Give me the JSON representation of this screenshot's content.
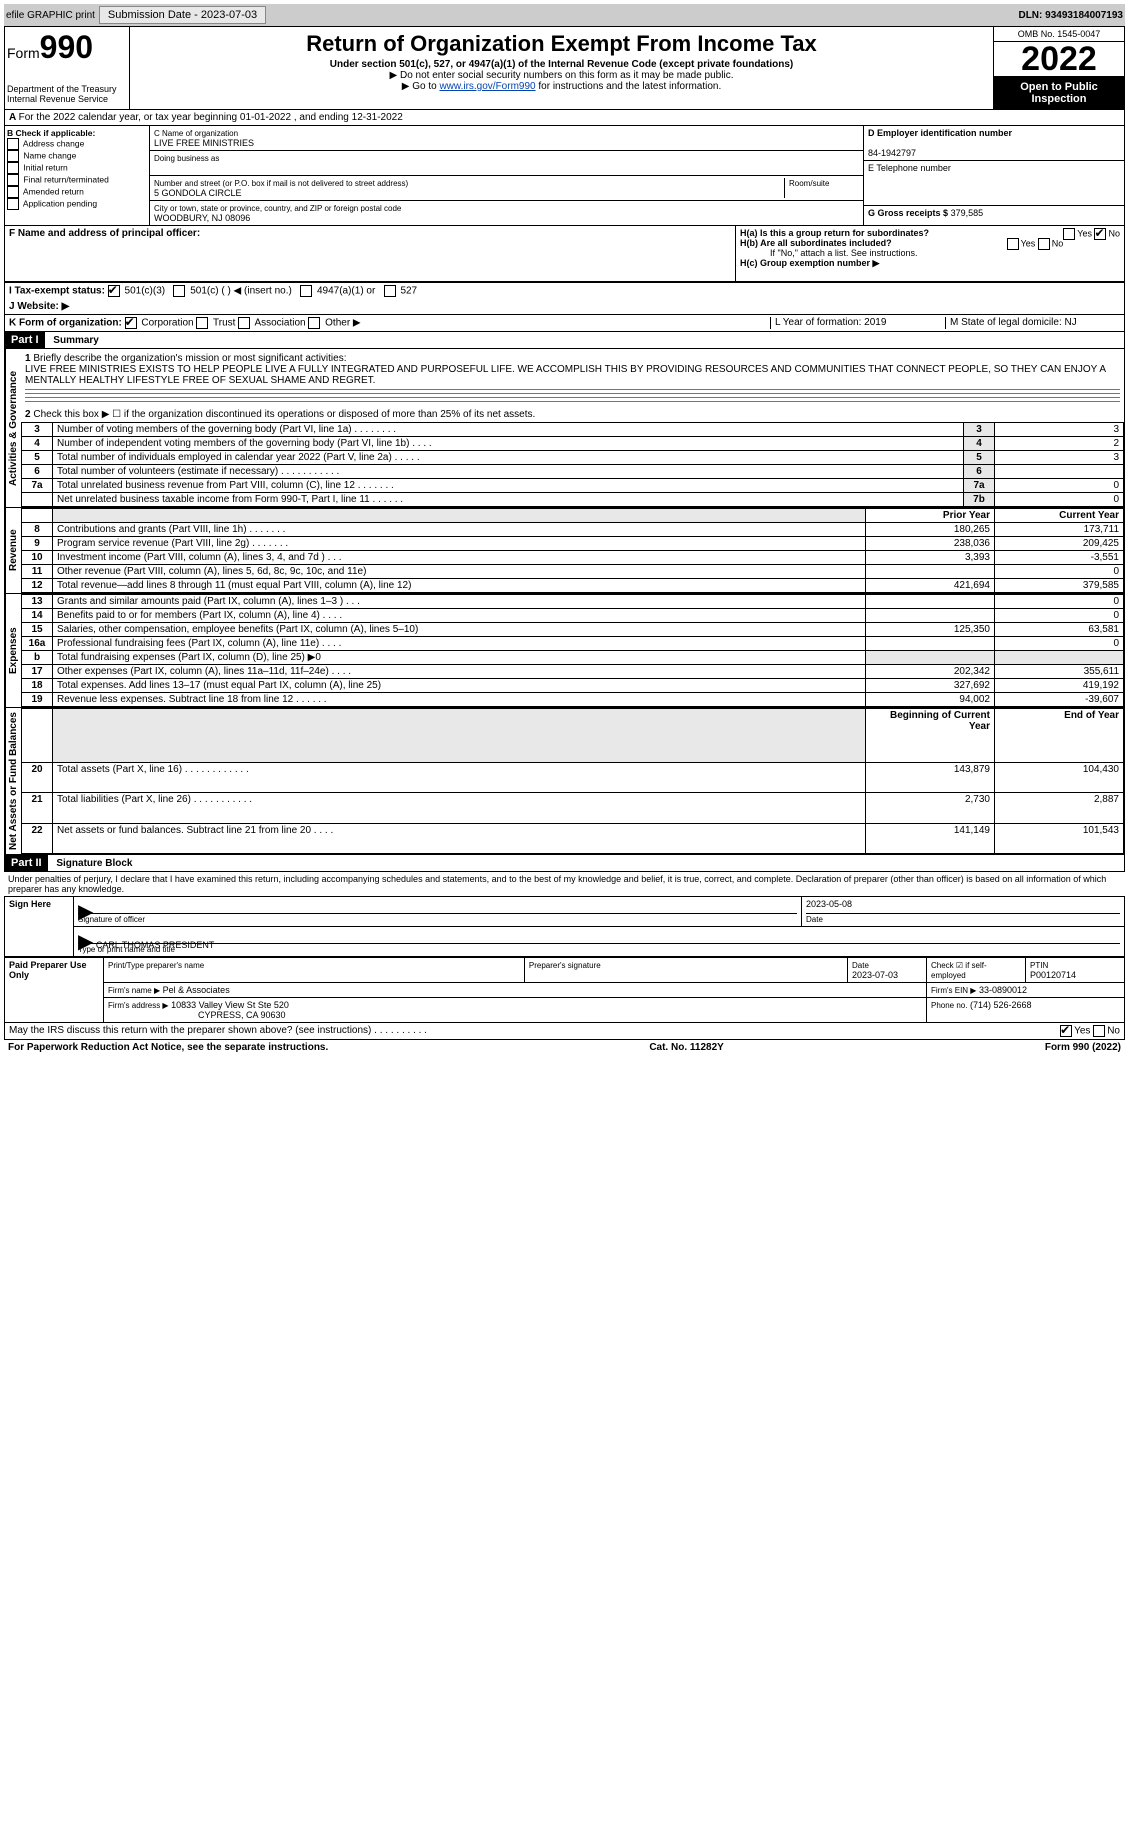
{
  "topbar": {
    "efile": "efile GRAPHIC print",
    "submission_label": "Submission Date - 2023-07-03",
    "dln": "DLN: 93493184007193"
  },
  "header": {
    "form_prefix": "Form",
    "form_no": "990",
    "dept1": "Department of the Treasury",
    "dept2": "Internal Revenue Service",
    "title": "Return of Organization Exempt From Income Tax",
    "subtitle": "Under section 501(c), 527, or 4947(a)(1) of the Internal Revenue Code (except private foundations)",
    "note1": "▶ Do not enter social security numbers on this form as it may be made public.",
    "note2_pre": "▶ Go to ",
    "note2_link": "www.irs.gov/Form990",
    "note2_post": " for instructions and the latest information.",
    "omb": "OMB No. 1545-0047",
    "year": "2022",
    "open": "Open to Public Inspection"
  },
  "periodA": "For the 2022 calendar year, or tax year beginning 01-01-2022     , and ending 12-31-2022",
  "boxB": {
    "label": "B Check if applicable:",
    "items": [
      "Address change",
      "Name change",
      "Initial return",
      "Final return/terminated",
      "Amended return",
      "Application pending"
    ]
  },
  "boxC": {
    "name_label": "C Name of organization",
    "name": "LIVE FREE MINISTRIES",
    "dba_label": "Doing business as",
    "addr_label": "Number and street (or P.O. box if mail is not delivered to street address)",
    "room_label": "Room/suite",
    "addr": "5 GONDOLA CIRCLE",
    "city_label": "City or town, state or province, country, and ZIP or foreign postal code",
    "city": "WOODBURY, NJ  08096"
  },
  "boxD": {
    "label": "D Employer identification number",
    "value": "84-1942797"
  },
  "boxE": {
    "label": "E Telephone number"
  },
  "boxG": {
    "label": "G Gross receipts $",
    "value": "379,585"
  },
  "boxF": {
    "label": "F  Name and address of principal officer:"
  },
  "boxH": {
    "ha": "H(a)  Is this a group return for subordinates?",
    "hb": "H(b)  Are all subordinates included?",
    "hb_note": "If \"No,\" attach a list. See instructions.",
    "hc": "H(c)  Group exemption number ▶",
    "yes": "Yes",
    "no": "No"
  },
  "boxI": {
    "label": "I   Tax-exempt status:",
    "opts": [
      "501(c)(3)",
      "501(c) (  ) ◀ (insert no.)",
      "4947(a)(1) or",
      "527"
    ]
  },
  "boxJ": {
    "label": "J   Website: ▶"
  },
  "boxK": {
    "label": "K Form of organization:",
    "opts": [
      "Corporation",
      "Trust",
      "Association",
      "Other ▶"
    ]
  },
  "boxL": {
    "label": "L Year of formation: 2019"
  },
  "boxM": {
    "label": "M State of legal domicile: NJ"
  },
  "partI": {
    "header": "Part I",
    "title": "Summary",
    "q1": "Briefly describe the organization's mission or most significant activities:",
    "mission": "LIVE FREE MINISTRIES EXISTS TO HELP PEOPLE LIVE A FULLY INTEGRATED AND PURPOSEFUL LIFE. WE ACCOMPLISH THIS BY PROVIDING RESOURCES AND COMMUNITIES THAT CONNECT PEOPLE, SO THEY CAN ENJOY A MENTALLY HEALTHY LIFESTYLE FREE OF SEXUAL SHAME AND REGRET.",
    "q2": "Check this box ▶ ☐  if the organization discontinued its operations or disposed of more than 25% of its net assets.",
    "lines_gov": [
      {
        "n": "3",
        "t": "Number of voting members of the governing body (Part VI, line 1a)   .     .     .     .     .     .     .     .",
        "box": "3",
        "v": "3"
      },
      {
        "n": "4",
        "t": "Number of independent voting members of the governing body (Part VI, line 1b)    .     .     .     .",
        "box": "4",
        "v": "2"
      },
      {
        "n": "5",
        "t": "Total number of individuals employed in calendar year 2022 (Part V, line 2a)   .     .     .     .     .",
        "box": "5",
        "v": "3"
      },
      {
        "n": "6",
        "t": "Total number of volunteers (estimate if necessary)    .     .     .     .     .     .     .     .     .     .     .",
        "box": "6",
        "v": ""
      },
      {
        "n": "7a",
        "t": "Total unrelated business revenue from Part VIII, column (C), line 12   .     .     .     .     .     .     .",
        "box": "7a",
        "v": "0"
      },
      {
        "n": "",
        "t": "Net unrelated business taxable income from Form 990-T, Part I, line 11   .     .     .     .     .     .",
        "box": "7b",
        "v": "0"
      }
    ],
    "colhead": {
      "prior": "Prior Year",
      "current": "Current Year"
    },
    "revenue": [
      {
        "n": "8",
        "t": "Contributions and grants (Part VIII, line 1h)   .     .     .     .     .     .     .",
        "p": "180,265",
        "c": "173,711"
      },
      {
        "n": "9",
        "t": "Program service revenue (Part VIII, line 2g)    .     .     .     .     .     .     .",
        "p": "238,036",
        "c": "209,425"
      },
      {
        "n": "10",
        "t": "Investment income (Part VIII, column (A), lines 3, 4, and 7d )    .     .     .",
        "p": "3,393",
        "c": "-3,551"
      },
      {
        "n": "11",
        "t": "Other revenue (Part VIII, column (A), lines 5, 6d, 8c, 9c, 10c, and 11e)",
        "p": "",
        "c": "0"
      },
      {
        "n": "12",
        "t": "Total revenue—add lines 8 through 11 (must equal Part VIII, column (A), line 12)",
        "p": "421,694",
        "c": "379,585"
      }
    ],
    "expenses": [
      {
        "n": "13",
        "t": "Grants and similar amounts paid (Part IX, column (A), lines 1–3 )   .     .     .",
        "p": "",
        "c": "0"
      },
      {
        "n": "14",
        "t": "Benefits paid to or for members (Part IX, column (A), line 4)   .     .     .     .",
        "p": "",
        "c": "0"
      },
      {
        "n": "15",
        "t": "Salaries, other compensation, employee benefits (Part IX, column (A), lines 5–10)",
        "p": "125,350",
        "c": "63,581"
      },
      {
        "n": "16a",
        "t": "Professional fundraising fees (Part IX, column (A), line 11e)   .     .     .     .",
        "p": "",
        "c": "0"
      },
      {
        "n": "b",
        "t": "Total fundraising expenses (Part IX, column (D), line 25) ▶0",
        "p": "SHADE",
        "c": "SHADE"
      },
      {
        "n": "17",
        "t": "Other expenses (Part IX, column (A), lines 11a–11d, 11f–24e)   .     .     .     .",
        "p": "202,342",
        "c": "355,611"
      },
      {
        "n": "18",
        "t": "Total expenses. Add lines 13–17 (must equal Part IX, column (A), line 25)",
        "p": "327,692",
        "c": "419,192"
      },
      {
        "n": "19",
        "t": "Revenue less expenses. Subtract line 18 from line 12   .     .     .     .     .     .",
        "p": "94,002",
        "c": "-39,607"
      }
    ],
    "colhead2": {
      "prior": "Beginning of Current Year",
      "current": "End of Year"
    },
    "net": [
      {
        "n": "20",
        "t": "Total assets (Part X, line 16)   .     .     .     .     .     .     .     .     .     .     .     .",
        "p": "143,879",
        "c": "104,430"
      },
      {
        "n": "21",
        "t": "Total liabilities (Part X, line 26)    .     .     .     .     .     .     .     .     .     .     .",
        "p": "2,730",
        "c": "2,887"
      },
      {
        "n": "22",
        "t": "Net assets or fund balances. Subtract line 21 from line 20   .     .     .     .",
        "p": "141,149",
        "c": "101,543"
      }
    ],
    "vtabs": {
      "gov": "Activities & Governance",
      "rev": "Revenue",
      "exp": "Expenses",
      "net": "Net Assets or Fund Balances"
    }
  },
  "partII": {
    "header": "Part II",
    "title": "Signature Block",
    "perjury": "Under penalties of perjury, I declare that I have examined this return, including accompanying schedules and statements, and to the best of my knowledge and belief, it is true, correct, and complete. Declaration of preparer (other than officer) is based on all information of which preparer has any knowledge.",
    "sign_here": "Sign Here",
    "sig_officer": "Signature of officer",
    "sig_date": "2023-05-08",
    "date_lbl": "Date",
    "officer_name": "CARL THOMAS  PRESIDENT",
    "type_name": "Type or print name and title",
    "paid": "Paid Preparer Use Only",
    "prep_name_lbl": "Print/Type preparer's name",
    "prep_sig_lbl": "Preparer's signature",
    "prep_date": "2023-07-03",
    "check_self": "Check ☑ if self-employed",
    "ptin_lbl": "PTIN",
    "ptin": "P00120714",
    "firm_name_lbl": "Firm's name    ▶",
    "firm_name": "Pel & Associates",
    "firm_ein_lbl": "Firm's EIN ▶",
    "firm_ein": "33-0890012",
    "firm_addr_lbl": "Firm's address ▶",
    "firm_addr": "10833 Valley View St Ste 520",
    "firm_addr2": "CYPRESS, CA  90630",
    "phone_lbl": "Phone no.",
    "phone": "(714) 526-2668",
    "discuss": "May the IRS discuss this return with the preparer shown above? (see instructions)   .     .     .     .     .     .     .     .     .     .",
    "discuss_yes": "Yes",
    "discuss_no": "No"
  },
  "footer": {
    "pra": "For Paperwork Reduction Act Notice, see the separate instructions.",
    "cat": "Cat. No. 11282Y",
    "form": "Form 990 (2022)"
  }
}
